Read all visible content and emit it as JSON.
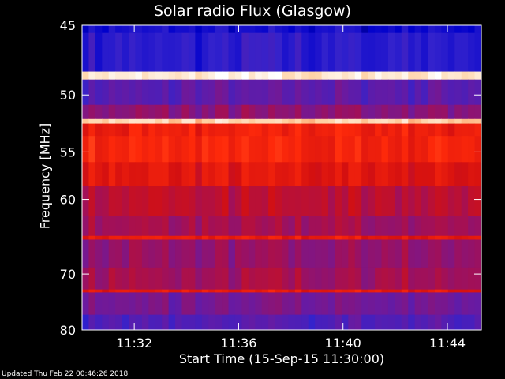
{
  "chart_data": {
    "type": "heatmap",
    "title": "Solar radio Flux (Glasgow)",
    "xlabel": "Start Time (15-Sep-15 11:30:00)",
    "ylabel": "Frequency [MHz]",
    "footer": "Updated Thu Feb 22 00:46:26 2018",
    "x_unit": "minutes after 11:30:00",
    "xlim": [
      0,
      15.3
    ],
    "ylim": [
      45,
      80
    ],
    "y_scale": "reciprocal",
    "x_ticks": [
      {
        "value": 2,
        "label": "11:32"
      },
      {
        "value": 6,
        "label": "11:36"
      },
      {
        "value": 10,
        "label": "11:40"
      },
      {
        "value": 14,
        "label": "11:44"
      }
    ],
    "y_ticks": [
      {
        "value": 45,
        "label": "45"
      },
      {
        "value": 50,
        "label": "50"
      },
      {
        "value": 55,
        "label": "55"
      },
      {
        "value": 60,
        "label": "60"
      },
      {
        "value": 70,
        "label": "70"
      },
      {
        "value": 80,
        "label": "80"
      }
    ],
    "colormap": [
      "#000033",
      "#0000cc",
      "#3322cc",
      "#6a1aa0",
      "#a0105a",
      "#d41010",
      "#ff2a0a",
      "#ff7a40",
      "#ffd0a0",
      "#ffffff"
    ],
    "bands": [
      {
        "f0": 45.0,
        "f1": 45.5,
        "level": 0.15
      },
      {
        "f0": 45.5,
        "f1": 48.2,
        "level": 0.2
      },
      {
        "f0": 48.2,
        "f1": 48.8,
        "level": 0.95
      },
      {
        "f0": 48.8,
        "f1": 50.8,
        "level": 0.3
      },
      {
        "f0": 50.8,
        "f1": 52.0,
        "level": 0.4
      },
      {
        "f0": 52.0,
        "f1": 52.4,
        "level": 0.9
      },
      {
        "f0": 52.4,
        "f1": 53.5,
        "level": 0.62
      },
      {
        "f0": 53.5,
        "f1": 56.0,
        "level": 0.64
      },
      {
        "f0": 56.0,
        "f1": 58.5,
        "level": 0.58
      },
      {
        "f0": 58.5,
        "f1": 62.0,
        "level": 0.5
      },
      {
        "f0": 62.0,
        "f1": 64.5,
        "level": 0.45
      },
      {
        "f0": 64.5,
        "f1": 65.0,
        "level": 0.6
      },
      {
        "f0": 65.0,
        "f1": 69.0,
        "level": 0.42
      },
      {
        "f0": 69.0,
        "f1": 72.5,
        "level": 0.45
      },
      {
        "f0": 72.5,
        "f1": 73.0,
        "level": 0.6
      },
      {
        "f0": 73.0,
        "f1": 77.0,
        "level": 0.35
      },
      {
        "f0": 77.0,
        "f1": 80.0,
        "level": 0.28
      }
    ]
  }
}
